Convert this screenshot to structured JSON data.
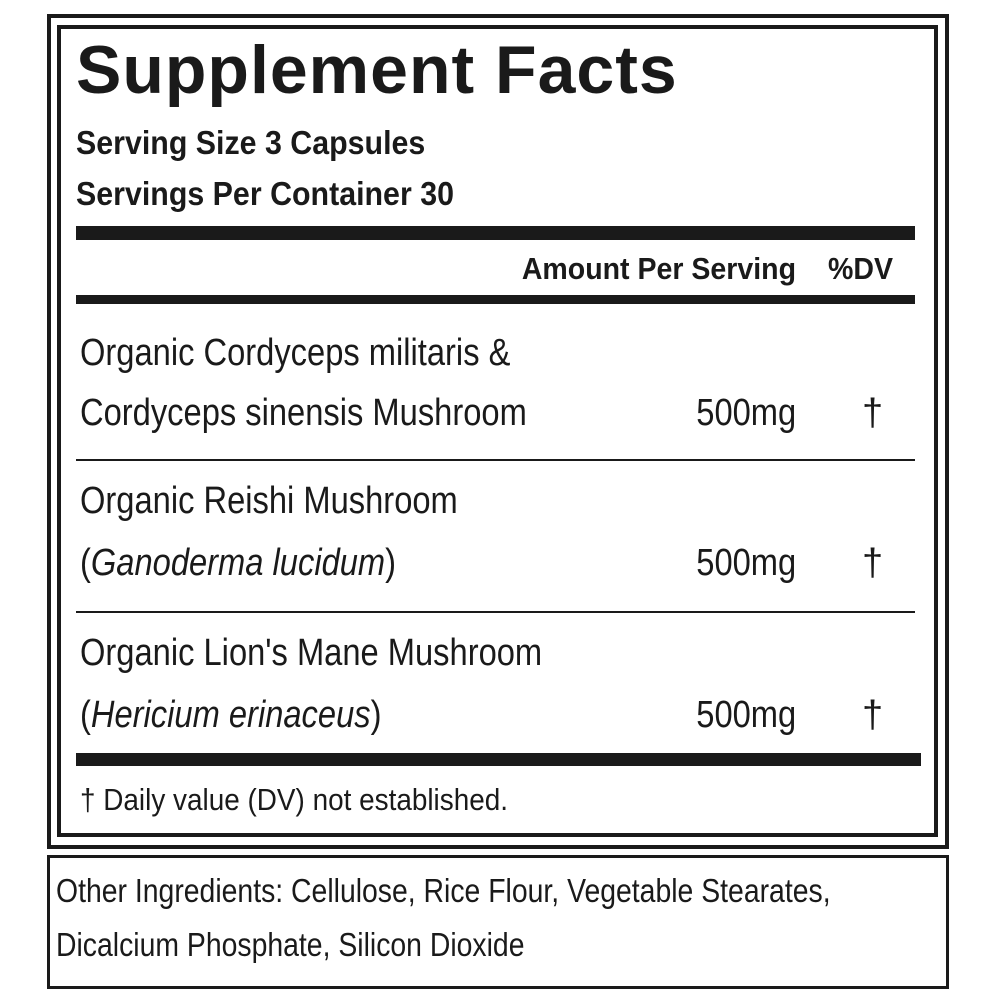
{
  "label": {
    "title": "Supplement Facts",
    "serving_size": "Serving Size 3 Capsules",
    "servings_per_container": "Servings Per Container 30",
    "header": {
      "amount": "Amount Per Serving",
      "dv": "%DV"
    },
    "ingredients": [
      {
        "line1": "Organic Cordyceps militaris &",
        "line2_pre": "Cordyceps sinensis Mushroom",
        "line2_italic": "",
        "line2_post": "",
        "amount": "500mg",
        "dv": "†"
      },
      {
        "line1": "Organic Reishi Mushroom",
        "line2_pre": "(",
        "line2_italic": "Ganoderma lucidum",
        "line2_post": ")",
        "amount": "500mg",
        "dv": "†"
      },
      {
        "line1": "Organic Lion's Mane Mushroom",
        "line2_pre": "(",
        "line2_italic": "Hericium erinaceus",
        "line2_post": ")",
        "amount": "500mg",
        "dv": "†"
      }
    ],
    "footnote": "† Daily value (DV) not established."
  },
  "other_ingredients": {
    "line1": "Other Ingredients: Cellulose, Rice Flour, Vegetable Stearates,",
    "line2": "Dicalcium Phosphate, Silicon Dioxide"
  }
}
